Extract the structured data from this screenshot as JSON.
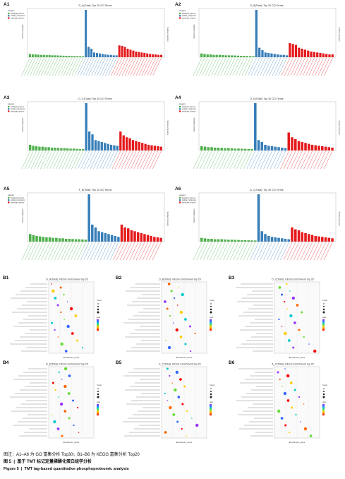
{
  "go_panels": [
    {
      "label": "A1",
      "title": "D_A(Total): Top 30 GO Terms"
    },
    {
      "label": "A2",
      "title": "D_B(Total): Top 30 GO Terms"
    },
    {
      "label": "A3",
      "title": "D_C(Total): Top 30 GO Terms"
    },
    {
      "label": "A4",
      "title": "D_D(Total): Top 30 GO Terms"
    },
    {
      "label": "A5",
      "title": "F_B(Total): Top 30 GO Terms"
    },
    {
      "label": "A6",
      "title": "A_C(Total): Top 30 GO Terms"
    }
  ],
  "go_legend": {
    "heading": "category",
    "items": [
      {
        "name": "biological_process",
        "color": "#4daf4a"
      },
      {
        "name": "cellular_component",
        "color": "#377eb8"
      },
      {
        "name": "molecular_function",
        "color": "#e41a1c"
      }
    ]
  },
  "go_axis": {
    "left": "Percent of proteins",
    "right": "Number of proteins"
  },
  "kegg_panels": [
    {
      "label": "B1",
      "title": "D_A(Total): KEGG Enrichment top 20"
    },
    {
      "label": "B2",
      "title": "D_B(Total): KEGG Enrichment top 20"
    },
    {
      "label": "B3",
      "title": "D_C(Total): KEGG Enrichment top 20"
    },
    {
      "label": "B4",
      "title": "D_D(Total): KEGG Enrichment top 20"
    },
    {
      "label": "B5",
      "title": "F_C(Total): KEGG Enrichment top 20"
    },
    {
      "label": "B6",
      "title": "A_C(Total): KEGG Enrichment top 20"
    }
  ],
  "kegg_axis": {
    "x": "Enrichment_score"
  },
  "kegg_legend": {
    "size_heading": "Count",
    "color_heading": "qval"
  },
  "colors": {
    "bp": "#4daf4a",
    "cc": "#377eb8",
    "mf": "#e41a1c"
  },
  "chart_data": [
    {
      "type": "bar",
      "panel": "A1",
      "series": [
        {
          "name": "biological_process",
          "values": [
            7,
            6,
            6,
            5.5,
            5,
            5,
            4.5,
            4.5,
            4,
            4,
            3.8,
            3.5,
            3.2,
            3,
            2.8,
            2.6,
            2.5,
            2.4,
            2.2,
            2
          ]
        },
        {
          "name": "cellular_component",
          "values": [
            100,
            22,
            18,
            10,
            9,
            8,
            7,
            6,
            5,
            5,
            4,
            4
          ]
        },
        {
          "name": "molecular_function",
          "values": [
            25,
            24,
            22,
            18,
            16,
            14,
            12,
            11,
            10,
            9,
            8,
            7,
            6,
            6,
            5,
            5
          ]
        }
      ]
    },
    {
      "type": "bar",
      "panel": "A2",
      "series": [
        {
          "name": "biological_process",
          "values": [
            8,
            7,
            6,
            6,
            5,
            5,
            5,
            4.5,
            4,
            4,
            3.8,
            3.6,
            3.3,
            3,
            2.8,
            2.6,
            2.4,
            2.2
          ]
        },
        {
          "name": "cellular_component",
          "values": [
            100,
            20,
            15,
            10,
            9,
            8,
            7,
            6,
            5,
            5,
            4
          ]
        },
        {
          "name": "molecular_function",
          "values": [
            30,
            28,
            26,
            20,
            18,
            16,
            14,
            12,
            11,
            10,
            9,
            8,
            7,
            6,
            6
          ]
        }
      ]
    },
    {
      "type": "bar",
      "panel": "A3",
      "series": [
        {
          "name": "biological_process",
          "values": [
            12,
            10,
            9,
            8,
            8,
            7,
            7,
            6,
            6,
            5.5,
            5,
            5,
            4.5,
            4,
            4,
            3.6,
            3.2,
            3
          ]
        },
        {
          "name": "cellular_component",
          "values": [
            100,
            40,
            34,
            22,
            20,
            18,
            16,
            14,
            12,
            11,
            10
          ]
        },
        {
          "name": "molecular_function",
          "values": [
            40,
            32,
            28,
            26,
            22,
            20,
            18,
            16,
            14,
            12,
            11,
            10,
            9,
            8
          ]
        }
      ]
    },
    {
      "type": "bar",
      "panel": "A4",
      "series": [
        {
          "name": "biological_process",
          "values": [
            9,
            8,
            7,
            7,
            6,
            6,
            5.5,
            5,
            5,
            4.5,
            4,
            4,
            3.8,
            3.5,
            3.2,
            3
          ]
        },
        {
          "name": "cellular_component",
          "values": [
            100,
            22,
            18,
            12,
            10,
            9,
            8,
            7,
            6,
            5
          ]
        },
        {
          "name": "molecular_function",
          "values": [
            38,
            28,
            24,
            20,
            18,
            16,
            14,
            12,
            11,
            10,
            9,
            8,
            7,
            6
          ]
        }
      ]
    },
    {
      "type": "bar",
      "panel": "A5",
      "series": [
        {
          "name": "biological_process",
          "values": [
            16,
            14,
            12,
            11,
            10,
            9,
            9,
            8,
            8,
            7,
            7,
            6,
            6,
            5.5,
            5,
            5,
            4.5,
            4
          ]
        },
        {
          "name": "cellular_component",
          "values": [
            100,
            36,
            30,
            22,
            20,
            18,
            16,
            14,
            12,
            10
          ]
        },
        {
          "name": "molecular_function",
          "values": [
            36,
            30,
            28,
            24,
            22,
            20,
            18,
            16,
            14,
            12,
            10,
            9,
            8
          ]
        }
      ]
    },
    {
      "type": "bar",
      "panel": "A6",
      "series": [
        {
          "name": "biological_process",
          "values": [
            8,
            7,
            6,
            6,
            5,
            5,
            5,
            4.5,
            4,
            4,
            3.8,
            3.5,
            3.2,
            3,
            2.8,
            2.6,
            2.4
          ]
        },
        {
          "name": "cellular_component",
          "values": [
            100,
            22,
            16,
            12,
            10,
            9,
            8,
            7,
            6,
            5
          ]
        },
        {
          "name": "molecular_function",
          "values": [
            30,
            26,
            24,
            20,
            18,
            16,
            14,
            12,
            11,
            10,
            9,
            8,
            7
          ]
        }
      ]
    }
  ]
}
